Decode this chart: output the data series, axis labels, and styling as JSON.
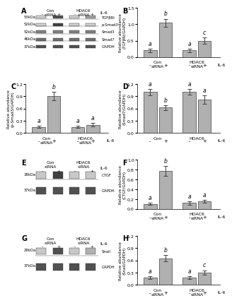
{
  "panel_B": {
    "title": "B",
    "ylabel": "Relative abundance\n(TGFβRI/GAPDH)",
    "groups": [
      "Con\nsiRNA",
      "HDAC6\nsiRNA"
    ],
    "il6_label": "IL-6",
    "bars": [
      0.2,
      1.05,
      0.2,
      0.5
    ],
    "errors": [
      0.05,
      0.12,
      0.05,
      0.1
    ],
    "letters": [
      "a",
      "b",
      "a",
      "c"
    ],
    "ylim": [
      0,
      1.5
    ],
    "yticks": [
      0,
      0.5,
      1.0,
      1.5
    ]
  },
  "panel_C": {
    "title": "C",
    "ylabel": "Relative abundance\n(p-Smad3/GAPDH)",
    "groups": [
      "Con\nsiRNA",
      "HDAC6\nsiRNA"
    ],
    "il6_label": "IL-6",
    "bars": [
      0.15,
      0.9,
      0.15,
      0.2
    ],
    "errors": [
      0.03,
      0.1,
      0.03,
      0.04
    ],
    "letters": [
      "a",
      "b",
      "a",
      "a"
    ],
    "ylim": [
      0,
      1.2
    ],
    "yticks": [
      0,
      0.3,
      0.6,
      0.9,
      1.2
    ]
  },
  "panel_D": {
    "title": "D",
    "ylabel": "Relative abundance\n(Smad7/GAPDH)",
    "groups": [
      "Con",
      "HDAC6"
    ],
    "il6_label": "IL-6",
    "bars": [
      1.0,
      0.62,
      1.0,
      0.82
    ],
    "errors": [
      0.08,
      0.06,
      0.07,
      0.1
    ],
    "letters": [
      "a",
      "b",
      "a",
      "a"
    ],
    "ylim": [
      0,
      1.2
    ],
    "yticks": [
      0,
      0.3,
      0.6,
      0.9,
      1.2
    ]
  },
  "panel_F": {
    "title": "F",
    "ylabel": "Relative abundance\n(CTGF/GAPDH)",
    "groups": [
      "Con\nsiRNA",
      "HDAC6\nsiRNA"
    ],
    "il6_label": "IL-6",
    "bars": [
      0.1,
      0.78,
      0.12,
      0.15
    ],
    "errors": [
      0.02,
      0.1,
      0.03,
      0.03
    ],
    "letters": [
      "a",
      "b",
      "a",
      "a"
    ],
    "ylim": [
      0,
      1.0
    ],
    "yticks": [
      0,
      0.2,
      0.4,
      0.6,
      0.8,
      1.0
    ]
  },
  "panel_H": {
    "title": "H",
    "ylabel": "Relative abundance\n(Snail/GAPDH)",
    "groups": [
      "Con\nsiRNA",
      "HDAC6\nsiRNA"
    ],
    "il6_label": "IL-6",
    "bars": [
      0.18,
      0.65,
      0.18,
      0.3
    ],
    "errors": [
      0.04,
      0.08,
      0.04,
      0.06
    ],
    "letters": [
      "a",
      "b",
      "a",
      "c"
    ],
    "ylim": [
      0,
      1.2
    ],
    "yticks": [
      0,
      0.3,
      0.6,
      0.9,
      1.2
    ]
  },
  "bar_color": "#b0b0b0",
  "bar_edge_color": "#404040",
  "western_color": "#808080",
  "background_color": "#ffffff"
}
